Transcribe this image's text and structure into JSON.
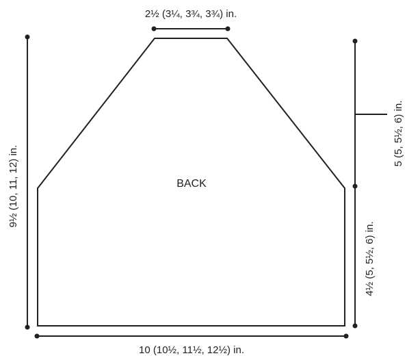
{
  "piece": {
    "name": "BACK"
  },
  "dimensions": {
    "top_width": "2½ (3¼, 3¾, 3¾) in.",
    "full_length": "9½ (10, 11, 12) in.",
    "upper_length": "5 (5, 5½, 6) in.",
    "lower_length": "4½ (5, 5½, 6) in.",
    "bottom_width": "10 (10½, 11½, 12½) in."
  },
  "colors": {
    "ink": "#231f20",
    "paper": "#ffffff"
  }
}
